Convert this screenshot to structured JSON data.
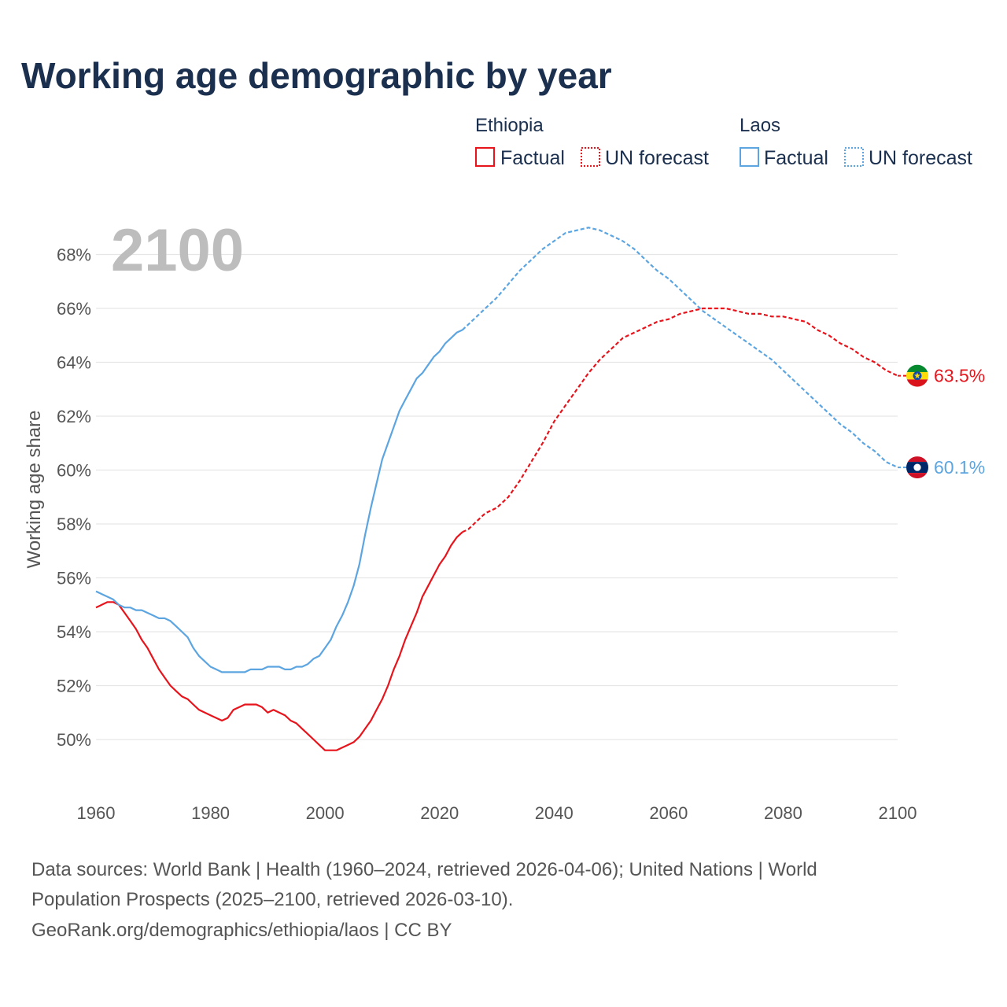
{
  "title": "Working age demographic by year",
  "year_label": "2100",
  "legend": {
    "groups": [
      {
        "country": "Ethiopia",
        "factual": "Factual",
        "forecast": "UN forecast",
        "color": "#e8141c"
      },
      {
        "country": "Laos",
        "factual": "Factual",
        "forecast": "UN forecast",
        "color": "#5ca5e0"
      }
    ]
  },
  "chart_data": {
    "type": "line",
    "title": "Working age demographic by year",
    "xlabel": "",
    "ylabel": "Working age share",
    "xlim": [
      1960,
      2100
    ],
    "ylim": [
      48.5,
      69.5
    ],
    "x_ticks": [
      1960,
      1980,
      2000,
      2020,
      2040,
      2060,
      2080,
      2100
    ],
    "y_ticks": [
      50,
      52,
      54,
      56,
      58,
      60,
      62,
      64,
      66,
      68
    ],
    "y_tick_labels": [
      "50%",
      "52%",
      "54%",
      "56%",
      "58%",
      "60%",
      "62%",
      "64%",
      "66%",
      "68%"
    ],
    "x_tick_labels": [
      "1960",
      "1980",
      "2000",
      "2020",
      "2040",
      "2060",
      "2080",
      "2100"
    ],
    "forecast_start": 2024,
    "series": [
      {
        "name": "Ethiopia",
        "color": "#e8141c",
        "end_label": "63.5%",
        "points": [
          [
            1960,
            54.9
          ],
          [
            1961,
            55.0
          ],
          [
            1962,
            55.1
          ],
          [
            1963,
            55.1
          ],
          [
            1964,
            55.0
          ],
          [
            1965,
            54.7
          ],
          [
            1966,
            54.4
          ],
          [
            1967,
            54.1
          ],
          [
            1968,
            53.7
          ],
          [
            1969,
            53.4
          ],
          [
            1970,
            53.0
          ],
          [
            1971,
            52.6
          ],
          [
            1972,
            52.3
          ],
          [
            1973,
            52.0
          ],
          [
            1974,
            51.8
          ],
          [
            1975,
            51.6
          ],
          [
            1976,
            51.5
          ],
          [
            1977,
            51.3
          ],
          [
            1978,
            51.1
          ],
          [
            1979,
            51.0
          ],
          [
            1980,
            50.9
          ],
          [
            1981,
            50.8
          ],
          [
            1982,
            50.7
          ],
          [
            1983,
            50.8
          ],
          [
            1984,
            51.1
          ],
          [
            1985,
            51.2
          ],
          [
            1986,
            51.3
          ],
          [
            1987,
            51.3
          ],
          [
            1988,
            51.3
          ],
          [
            1989,
            51.2
          ],
          [
            1990,
            51.0
          ],
          [
            1991,
            51.1
          ],
          [
            1992,
            51.0
          ],
          [
            1993,
            50.9
          ],
          [
            1994,
            50.7
          ],
          [
            1995,
            50.6
          ],
          [
            1996,
            50.4
          ],
          [
            1997,
            50.2
          ],
          [
            1998,
            50.0
          ],
          [
            1999,
            49.8
          ],
          [
            2000,
            49.6
          ],
          [
            2001,
            49.6
          ],
          [
            2002,
            49.6
          ],
          [
            2003,
            49.7
          ],
          [
            2004,
            49.8
          ],
          [
            2005,
            49.9
          ],
          [
            2006,
            50.1
          ],
          [
            2007,
            50.4
          ],
          [
            2008,
            50.7
          ],
          [
            2009,
            51.1
          ],
          [
            2010,
            51.5
          ],
          [
            2011,
            52.0
          ],
          [
            2012,
            52.6
          ],
          [
            2013,
            53.1
          ],
          [
            2014,
            53.7
          ],
          [
            2015,
            54.2
          ],
          [
            2016,
            54.7
          ],
          [
            2017,
            55.3
          ],
          [
            2018,
            55.7
          ],
          [
            2019,
            56.1
          ],
          [
            2020,
            56.5
          ],
          [
            2021,
            56.8
          ],
          [
            2022,
            57.2
          ],
          [
            2023,
            57.5
          ],
          [
            2024,
            57.7
          ],
          [
            2025,
            57.8
          ],
          [
            2026,
            58.0
          ],
          [
            2027,
            58.2
          ],
          [
            2028,
            58.4
          ],
          [
            2029,
            58.5
          ],
          [
            2030,
            58.6
          ],
          [
            2032,
            59.0
          ],
          [
            2034,
            59.6
          ],
          [
            2036,
            60.3
          ],
          [
            2038,
            61.0
          ],
          [
            2040,
            61.8
          ],
          [
            2042,
            62.4
          ],
          [
            2044,
            63.0
          ],
          [
            2046,
            63.6
          ],
          [
            2048,
            64.1
          ],
          [
            2050,
            64.5
          ],
          [
            2052,
            64.9
          ],
          [
            2054,
            65.1
          ],
          [
            2056,
            65.3
          ],
          [
            2058,
            65.5
          ],
          [
            2060,
            65.6
          ],
          [
            2062,
            65.8
          ],
          [
            2064,
            65.9
          ],
          [
            2066,
            66.0
          ],
          [
            2068,
            66.0
          ],
          [
            2070,
            66.0
          ],
          [
            2072,
            65.9
          ],
          [
            2074,
            65.8
          ],
          [
            2076,
            65.8
          ],
          [
            2078,
            65.7
          ],
          [
            2080,
            65.7
          ],
          [
            2082,
            65.6
          ],
          [
            2084,
            65.5
          ],
          [
            2086,
            65.2
          ],
          [
            2088,
            65.0
          ],
          [
            2090,
            64.7
          ],
          [
            2092,
            64.5
          ],
          [
            2094,
            64.2
          ],
          [
            2096,
            64.0
          ],
          [
            2098,
            63.7
          ],
          [
            2100,
            63.5
          ]
        ]
      },
      {
        "name": "Laos",
        "color": "#5ca5e0",
        "end_label": "60.1%",
        "points": [
          [
            1960,
            55.5
          ],
          [
            1961,
            55.4
          ],
          [
            1962,
            55.3
          ],
          [
            1963,
            55.2
          ],
          [
            1964,
            55.0
          ],
          [
            1965,
            54.9
          ],
          [
            1966,
            54.9
          ],
          [
            1967,
            54.8
          ],
          [
            1968,
            54.8
          ],
          [
            1969,
            54.7
          ],
          [
            1970,
            54.6
          ],
          [
            1971,
            54.5
          ],
          [
            1972,
            54.5
          ],
          [
            1973,
            54.4
          ],
          [
            1974,
            54.2
          ],
          [
            1975,
            54.0
          ],
          [
            1976,
            53.8
          ],
          [
            1977,
            53.4
          ],
          [
            1978,
            53.1
          ],
          [
            1979,
            52.9
          ],
          [
            1980,
            52.7
          ],
          [
            1981,
            52.6
          ],
          [
            1982,
            52.5
          ],
          [
            1983,
            52.5
          ],
          [
            1984,
            52.5
          ],
          [
            1985,
            52.5
          ],
          [
            1986,
            52.5
          ],
          [
            1987,
            52.6
          ],
          [
            1988,
            52.6
          ],
          [
            1989,
            52.6
          ],
          [
            1990,
            52.7
          ],
          [
            1991,
            52.7
          ],
          [
            1992,
            52.7
          ],
          [
            1993,
            52.6
          ],
          [
            1994,
            52.6
          ],
          [
            1995,
            52.7
          ],
          [
            1996,
            52.7
          ],
          [
            1997,
            52.8
          ],
          [
            1998,
            53.0
          ],
          [
            1999,
            53.1
          ],
          [
            2000,
            53.4
          ],
          [
            2001,
            53.7
          ],
          [
            2002,
            54.2
          ],
          [
            2003,
            54.6
          ],
          [
            2004,
            55.1
          ],
          [
            2005,
            55.7
          ],
          [
            2006,
            56.5
          ],
          [
            2007,
            57.6
          ],
          [
            2008,
            58.6
          ],
          [
            2009,
            59.5
          ],
          [
            2010,
            60.4
          ],
          [
            2011,
            61.0
          ],
          [
            2012,
            61.6
          ],
          [
            2013,
            62.2
          ],
          [
            2014,
            62.6
          ],
          [
            2015,
            63.0
          ],
          [
            2016,
            63.4
          ],
          [
            2017,
            63.6
          ],
          [
            2018,
            63.9
          ],
          [
            2019,
            64.2
          ],
          [
            2020,
            64.4
          ],
          [
            2021,
            64.7
          ],
          [
            2022,
            64.9
          ],
          [
            2023,
            65.1
          ],
          [
            2024,
            65.2
          ],
          [
            2026,
            65.6
          ],
          [
            2028,
            66.0
          ],
          [
            2030,
            66.4
          ],
          [
            2032,
            66.9
          ],
          [
            2034,
            67.4
          ],
          [
            2036,
            67.8
          ],
          [
            2038,
            68.2
          ],
          [
            2040,
            68.5
          ],
          [
            2042,
            68.8
          ],
          [
            2044,
            68.9
          ],
          [
            2046,
            69.0
          ],
          [
            2048,
            68.9
          ],
          [
            2050,
            68.7
          ],
          [
            2052,
            68.5
          ],
          [
            2054,
            68.2
          ],
          [
            2056,
            67.8
          ],
          [
            2058,
            67.4
          ],
          [
            2060,
            67.1
          ],
          [
            2062,
            66.7
          ],
          [
            2064,
            66.3
          ],
          [
            2066,
            65.9
          ],
          [
            2068,
            65.6
          ],
          [
            2070,
            65.3
          ],
          [
            2072,
            65.0
          ],
          [
            2074,
            64.7
          ],
          [
            2076,
            64.4
          ],
          [
            2078,
            64.1
          ],
          [
            2080,
            63.7
          ],
          [
            2082,
            63.3
          ],
          [
            2084,
            62.9
          ],
          [
            2086,
            62.5
          ],
          [
            2088,
            62.1
          ],
          [
            2090,
            61.7
          ],
          [
            2092,
            61.4
          ],
          [
            2094,
            61.0
          ],
          [
            2096,
            60.7
          ],
          [
            2098,
            60.3
          ],
          [
            2100,
            60.1
          ]
        ]
      }
    ]
  },
  "source": {
    "line1": "Data sources: World Bank | Health (1960–2024, retrieved 2026-04-06); United Nations | World",
    "line2": "Population Prospects (2025–2100, retrieved 2026-03-10).",
    "line3": "GeoRank.org/demographics/ethiopia/laos | CC BY"
  }
}
